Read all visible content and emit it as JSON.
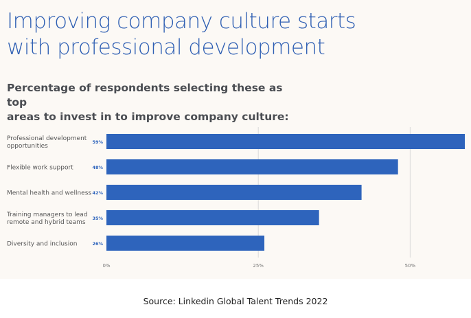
{
  "title_lines": [
    "Improving company culture starts",
    "with professional development"
  ],
  "subtitle_lines": [
    "Percentage of respondents selecting these as top",
    "areas to invest in to improve company culture:"
  ],
  "source": "Source: Linkedin Global Talent Trends 2022",
  "colors": {
    "bar": "#2e64bc",
    "title": "#2f5fb3",
    "panel_bg": "#fcf9f5",
    "grid": "#d9d9d9",
    "text": "#555555",
    "value_label": "#2e64bc"
  },
  "chart_data": {
    "type": "bar",
    "orientation": "horizontal",
    "categories": [
      [
        "Professional development",
        "opportunities"
      ],
      [
        "Flexible work support"
      ],
      [
        "Mental health and wellness"
      ],
      [
        "Training managers to lead",
        "remote and hybrid teams"
      ],
      [
        "Diversity and inclusion"
      ]
    ],
    "values": [
      59,
      48,
      42,
      35,
      26
    ],
    "value_labels": [
      "59%",
      "48%",
      "42%",
      "35%",
      "26%"
    ],
    "xlim": [
      0,
      59
    ],
    "xticks": [
      0,
      25,
      50
    ],
    "xtick_labels": [
      "0%",
      "25%",
      "50%"
    ],
    "grid": true
  }
}
